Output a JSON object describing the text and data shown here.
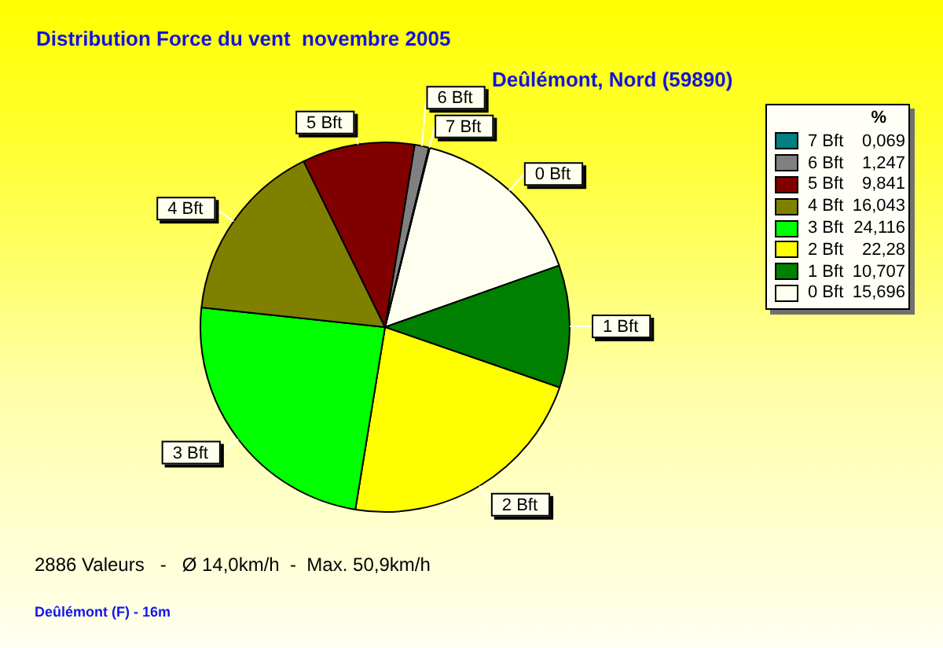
{
  "chart_data": {
    "type": "pie",
    "title": "Distribution Force du vent  novembre 2005",
    "subtitle": "Deûlémont, Nord (59890)",
    "categories": [
      "0 Bft",
      "1 Bft",
      "2 Bft",
      "3 Bft",
      "4 Bft",
      "5 Bft",
      "6 Bft",
      "7 Bft"
    ],
    "values": [
      15.696,
      10.707,
      22.28,
      24.116,
      16.043,
      9.841,
      1.247,
      0.069
    ],
    "colors": [
      "#fffff0",
      "#008000",
      "#ffff00",
      "#00ff00",
      "#808000",
      "#800000",
      "#808080",
      "#008080"
    ],
    "value_labels": [
      "15,696",
      "10,707",
      "22,28",
      "24,116",
      "16,043",
      "9,841",
      "1,247",
      "0,069"
    ],
    "legend": "right",
    "legend_title": "%",
    "annotations": [
      "2886 Valeurs   -   Ø 14,0km/h  -  Max. 50,9km/h",
      "Deûlémont (F) - 16m"
    ]
  }
}
